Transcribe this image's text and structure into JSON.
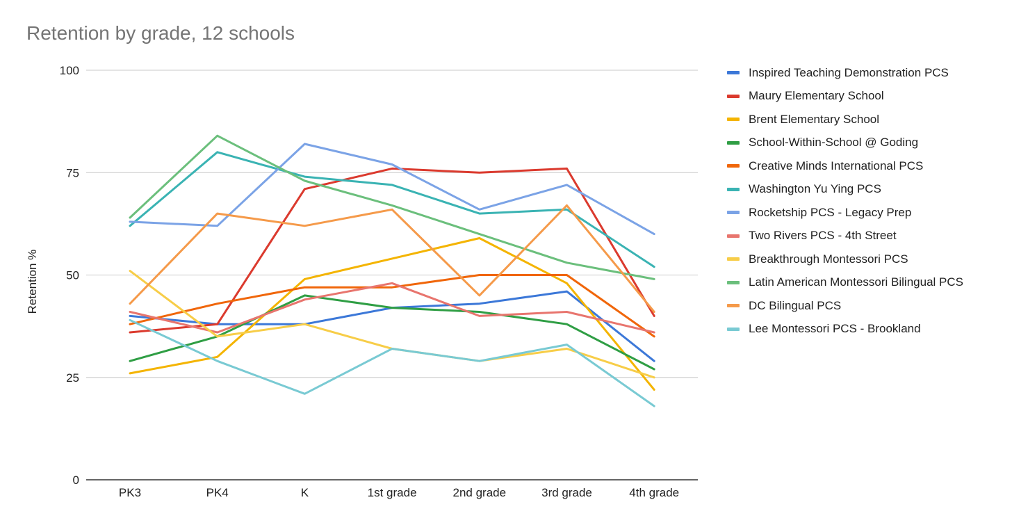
{
  "chart_data": {
    "type": "line",
    "title": "Retention by grade, 12 schools",
    "xlabel": "",
    "ylabel": "Retention %",
    "ylim": [
      0,
      100
    ],
    "yticks": [
      0,
      25,
      50,
      75,
      100
    ],
    "grid": true,
    "legend_position": "right",
    "categories": [
      "PK3",
      "PK4",
      "K",
      "1st grade",
      "2nd grade",
      "3rd grade",
      "4th grade"
    ],
    "series": [
      {
        "name": "Inspired Teaching Demonstration PCS",
        "color": "#3c78d8",
        "values": [
          40,
          38,
          38,
          42,
          43,
          46,
          29
        ]
      },
      {
        "name": "Maury Elementary School",
        "color": "#db3a2e",
        "values": [
          36,
          38,
          71,
          76,
          75,
          76,
          40
        ]
      },
      {
        "name": "Brent Elementary School",
        "color": "#f4b400",
        "values": [
          26,
          30,
          49,
          54,
          59,
          48,
          22
        ]
      },
      {
        "name": "School-Within-School @ Goding",
        "color": "#2f9e44",
        "values": [
          29,
          35,
          45,
          42,
          41,
          38,
          27
        ]
      },
      {
        "name": "Creative Minds International PCS",
        "color": "#f0660a",
        "values": [
          38,
          43,
          47,
          47,
          50,
          50,
          35
        ]
      },
      {
        "name": "Washington Yu Ying PCS",
        "color": "#3ab3b3",
        "values": [
          62,
          80,
          74,
          72,
          65,
          66,
          52
        ]
      },
      {
        "name": "Rocketship PCS - Legacy Prep",
        "color": "#7ba3e6",
        "values": [
          63,
          62,
          82,
          77,
          66,
          72,
          60
        ]
      },
      {
        "name": "Two Rivers PCS - 4th Street",
        "color": "#e8756e",
        "values": [
          41,
          36,
          44,
          48,
          40,
          41,
          36
        ]
      },
      {
        "name": "Breakthrough Montessori PCS",
        "color": "#f7cd48",
        "values": [
          51,
          35,
          38,
          32,
          29,
          32,
          25
        ]
      },
      {
        "name": "Latin American Montessori Bilingual PCS",
        "color": "#6bbf7c",
        "values": [
          64,
          84,
          73,
          67,
          60,
          53,
          49
        ]
      },
      {
        "name": "DC Bilingual PCS",
        "color": "#f59a4a",
        "values": [
          43,
          65,
          62,
          66,
          45,
          67,
          41
        ]
      },
      {
        "name": "Lee Montessori PCS - Brookland",
        "color": "#79cad3",
        "values": [
          39,
          29,
          21,
          32,
          29,
          33,
          18
        ]
      }
    ]
  }
}
